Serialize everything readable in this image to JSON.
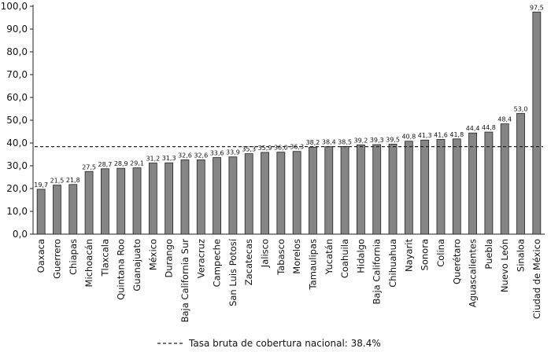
{
  "chart_data": {
    "type": "bar",
    "categories": [
      "Oaxaca",
      "Guerrero",
      "Chiapas",
      "Michoacán",
      "Tlaxcala",
      "Quintana Roo",
      "Guanajuato",
      "México",
      "Durango",
      "Baja California Sur",
      "Veracruz",
      "Campeche",
      "San Luis Potosí",
      "Zacatecas",
      "Jalisco",
      "Tabasco",
      "Morelos",
      "Tamaulipas",
      "Yucatán",
      "Coahuila",
      "Hidalgo",
      "Baja California",
      "Chihuahua",
      "Nayarit",
      "Sonora",
      "Colina",
      "Querétaro",
      "Aguascalientes",
      "Puebla",
      "Nuevo León",
      "Sinaloa",
      "Ciudad de México"
    ],
    "values": [
      19.7,
      21.5,
      21.8,
      27.5,
      28.7,
      28.9,
      29.1,
      31.2,
      31.3,
      32.6,
      32.6,
      33.6,
      33.9,
      35.3,
      35.9,
      36.0,
      36.3,
      38.2,
      38.4,
      38.5,
      39.2,
      39.3,
      39.5,
      40.8,
      41.3,
      41.6,
      41.8,
      44.4,
      44.8,
      48.4,
      53.0,
      97.5
    ],
    "data_labels": [
      "19,7",
      "21,5",
      "21,8",
      "27,5",
      "28,7",
      "28,9",
      "29,1",
      "31,2",
      "31,3",
      "32,6",
      "32,6",
      "33,6",
      "33,9",
      "35,3",
      "35,9",
      "36,0",
      "36,3",
      "38,2",
      "38,4",
      "38,5",
      "39,2",
      "39,3",
      "39,5",
      "40,8",
      "41,3",
      "41,6",
      "41,8",
      "44,4",
      "44,8",
      "48,4",
      "53,0",
      "97,5"
    ],
    "yticks": [
      "0,0",
      "10,0",
      "20,0",
      "30,0",
      "40,0",
      "50,0",
      "60,0",
      "70,0",
      "80,0",
      "90,0",
      "100,0"
    ],
    "ylim": [
      0,
      100
    ],
    "reference_line": {
      "value": 38.4,
      "style": "dashed"
    },
    "legend": {
      "placement": "bottom",
      "label": "Tasa bruta de cobertura nacional: 38.4%"
    },
    "bar_color": "#858585",
    "bar_edge_color": "#222222",
    "title": "",
    "xlabel": "",
    "ylabel": "",
    "grid": false
  }
}
